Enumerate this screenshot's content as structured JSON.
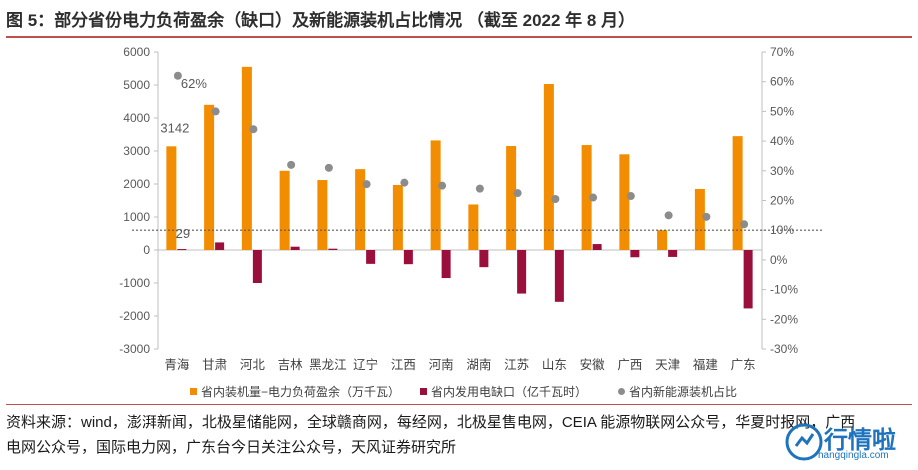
{
  "header": {
    "title_prefix": "图 5：",
    "title_main": "部分省份电力负荷盈余（缺口）及新能源装机占比情况 （截至 2022 年 8 月）"
  },
  "chart_data": {
    "type": "bar",
    "categories": [
      "青海",
      "甘肃",
      "河北",
      "吉林",
      "黑龙江",
      "辽宁",
      "江西",
      "河南",
      "湖南",
      "江苏",
      "山东",
      "安徽",
      "广西",
      "天津",
      "福建",
      "广东"
    ],
    "series": [
      {
        "name": "省内装机量−电力负荷盈余（万千瓦）",
        "type": "bar",
        "axis": "left",
        "color": "#f28c00",
        "values": [
          3142,
          4400,
          5550,
          2400,
          2120,
          2450,
          1970,
          3320,
          1380,
          3150,
          5030,
          3180,
          2900,
          600,
          1850,
          3450
        ]
      },
      {
        "name": "省内发用电缺口（亿千瓦时）",
        "type": "bar",
        "axis": "left",
        "color": "#9b0f3c",
        "values": [
          29,
          230,
          -1000,
          100,
          40,
          -420,
          -430,
          -850,
          -520,
          -1320,
          -1570,
          180,
          -220,
          -210,
          0,
          -1770
        ]
      },
      {
        "name": "省内新能源装机占比",
        "type": "scatter",
        "axis": "right",
        "color": "#8c8c8c",
        "values": [
          62,
          50,
          44,
          32,
          31,
          25.5,
          26,
          25,
          24,
          22.5,
          20.5,
          21,
          21.5,
          15,
          14.5,
          12
        ]
      }
    ],
    "y_left": {
      "min": -3000,
      "max": 6000,
      "step": 1000,
      "ticks": [
        "-3000",
        "-2000",
        "-1000",
        "0",
        "1000",
        "2000",
        "3000",
        "4000",
        "5000",
        "6000"
      ]
    },
    "y_right": {
      "min": -30,
      "max": 70,
      "step": 10,
      "ticks": [
        "-30%",
        "-20%",
        "-10%",
        "0%",
        "10%",
        "20%",
        "30%",
        "40%",
        "50%",
        "60%",
        "70%"
      ]
    },
    "reference_line": {
      "axis": "right",
      "value": 10
    },
    "annotations": [
      {
        "text": "62%",
        "series": 2,
        "index": 0
      },
      {
        "text": "3142",
        "series": 0,
        "index": 0
      },
      {
        "text": "29",
        "series": 1,
        "index": 0
      }
    ],
    "legend_position": "bottom",
    "grid": false
  },
  "legend": [
    {
      "label": "省内装机量−电力负荷盈余（万千瓦）",
      "color": "#f28c00",
      "shape": "square"
    },
    {
      "label": "省内发用电缺口（亿千瓦时）",
      "color": "#9b0f3c",
      "shape": "square"
    },
    {
      "label": "省内新能源装机占比",
      "color": "#8c8c8c",
      "shape": "circle"
    }
  ],
  "footer": {
    "source_text": "资料来源：wind，澎湃新闻，北极星储能网，全球赣商网，每经网，北极星售电网，CEIA 能源物联网公众号，华夏时报网，广西电网公众号，国际电力网，广东台今日关注公众号，天风证券研究所"
  },
  "watermark": {
    "text": "行情啦",
    "url": "hangqingla.com"
  }
}
